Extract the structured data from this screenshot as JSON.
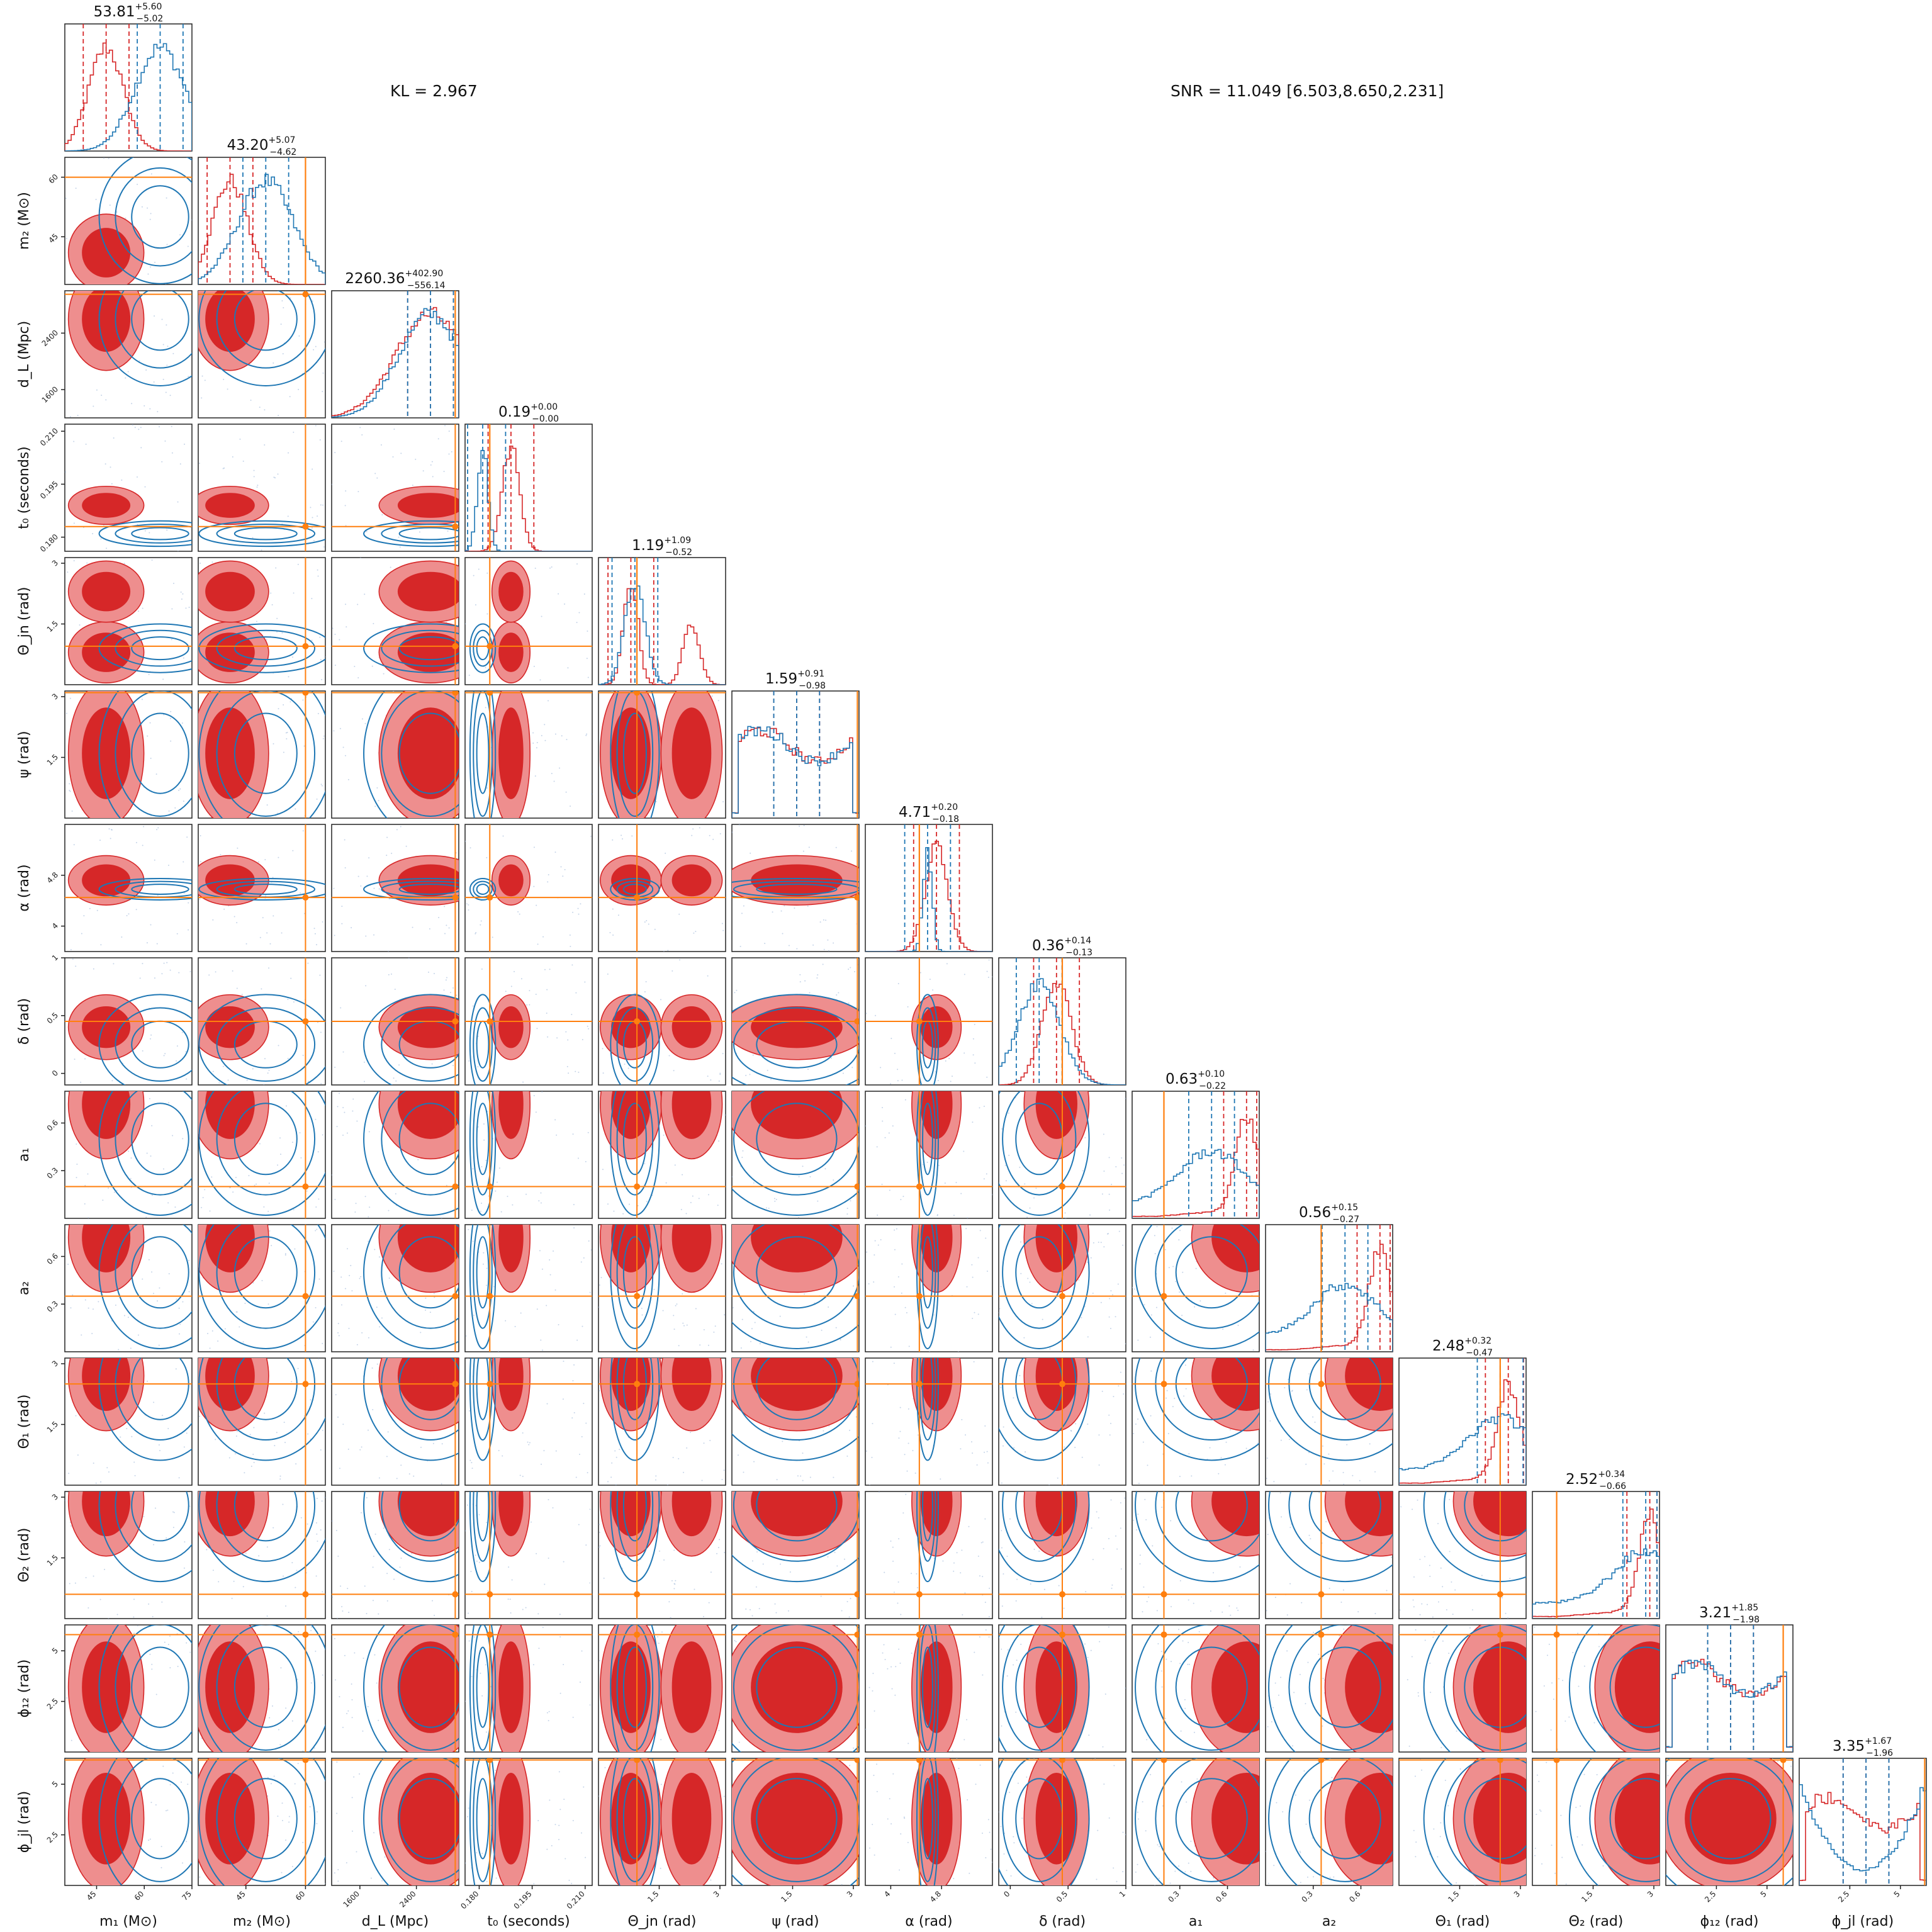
{
  "annotations": {
    "kl": "KL = 2.967",
    "snr": "SNR = 11.049 [6.503,8.650,2.231]"
  },
  "colors": {
    "red": "#d62728",
    "red_light": "#ee8e8e",
    "blue": "#1f77b4",
    "orange": "#ff7f0e"
  },
  "chart_data": {
    "type": "corner",
    "series": [
      {
        "name": "",
        "color": "#d62728",
        "style": "filled contours + step histograms"
      },
      {
        "name": "",
        "color": "#1f77b4",
        "style": "line contours + step histograms"
      }
    ],
    "parameters": [
      {
        "key": "m1",
        "xlabel": "m₁ (M⊙)",
        "ylabel": "",
        "range": [
          35,
          75
        ],
        "ticks": [
          45,
          60,
          75
        ],
        "title_median": "53.81",
        "title_plus": "+5.60",
        "title_minus": "−5.02",
        "red_mode": 48,
        "blue_mode": 65,
        "red_sigma": 5.5,
        "blue_sigma": 8,
        "truth": null
      },
      {
        "key": "m2",
        "xlabel": "m₂ (M⊙)",
        "ylabel": "m₂ (M⊙)",
        "range": [
          33,
          65
        ],
        "ticks": [
          45,
          60
        ],
        "title_median": "43.20",
        "title_plus": "+5.07",
        "title_minus": "−4.62",
        "red_mode": 41,
        "blue_mode": 50,
        "red_sigma": 4.5,
        "blue_sigma": 7,
        "truth": 60
      },
      {
        "key": "dL",
        "xlabel": "d_L (Mpc)",
        "ylabel": "d_L (Mpc)",
        "range": [
          1200,
          3000
        ],
        "ticks": [
          1600,
          2400
        ],
        "title_median": "2260.36",
        "title_plus": "+402.90",
        "title_minus": "−556.14",
        "red_mode": 2600,
        "blue_mode": 2600,
        "red_sigma": 500,
        "blue_sigma": 450,
        "truth": 2950
      },
      {
        "key": "t0",
        "xlabel": "t₀ (seconds)",
        "ylabel": "t₀ (seconds)",
        "range": [
          0.176,
          0.212
        ],
        "ticks": [
          0.18,
          0.195,
          0.21
        ],
        "tick_labels": [
          "0.180",
          "0.195",
          "0.210"
        ],
        "title_median": "0.19",
        "title_plus": "+0.00",
        "title_minus": "−0.00",
        "red_mode": 0.189,
        "blue_mode": 0.181,
        "red_sigma": 0.0025,
        "blue_sigma": 0.0015,
        "truth": 0.183
      },
      {
        "key": "theta_jn",
        "xlabel": "Θ_jn (rad)",
        "ylabel": "Θ_jn (rad)",
        "range": [
          0,
          3.14
        ],
        "ticks": [
          1.5,
          3.0
        ],
        "title_median": "1.19",
        "title_plus": "+1.09",
        "title_minus": "−0.52",
        "red_mode": 0.8,
        "blue_mode": 0.9,
        "red_sigma": 0.35,
        "blue_sigma": 0.25,
        "truth": 0.95,
        "bimodal_red": [
          0.8,
          2.3
        ]
      },
      {
        "key": "psi",
        "xlabel": "ψ (rad)",
        "ylabel": "ψ (rad)",
        "range": [
          0,
          3.14
        ],
        "ticks": [
          1.5,
          3.0
        ],
        "title_median": "1.59",
        "title_plus": "+0.91",
        "title_minus": "−0.98",
        "red_mode": 1.6,
        "blue_mode": 1.6,
        "uniform": true,
        "truth": 3.1
      },
      {
        "key": "alpha",
        "xlabel": "α (rad)",
        "ylabel": "α (rad)",
        "range": [
          3.6,
          5.6
        ],
        "ticks": [
          4.0,
          4.8
        ],
        "title_median": "4.71",
        "title_plus": "+0.20",
        "title_minus": "−0.18",
        "red_mode": 4.72,
        "blue_mode": 4.58,
        "red_sigma": 0.18,
        "blue_sigma": 0.07,
        "truth": 4.45
      },
      {
        "key": "delta",
        "xlabel": "δ (rad)",
        "ylabel": "δ (rad)",
        "range": [
          -0.1,
          1.0
        ],
        "ticks": [
          0.0,
          0.5,
          1.0
        ],
        "title_median": "0.36",
        "title_plus": "+0.14",
        "title_minus": "−0.13",
        "red_mode": 0.4,
        "blue_mode": 0.25,
        "red_sigma": 0.13,
        "blue_sigma": 0.18,
        "truth": 0.45
      },
      {
        "key": "a1",
        "xlabel": "a₁",
        "ylabel": "a₁",
        "range": [
          0,
          0.8
        ],
        "ticks": [
          0.3,
          0.6
        ],
        "title_median": "0.63",
        "title_plus": "+0.10",
        "title_minus": "−0.22",
        "red_mode": 0.72,
        "blue_mode": 0.5,
        "rising": true,
        "truth": 0.2
      },
      {
        "key": "a2",
        "xlabel": "a₂",
        "ylabel": "a₂",
        "range": [
          0,
          0.8
        ],
        "ticks": [
          0.3,
          0.6
        ],
        "title_median": "0.56",
        "title_plus": "+0.15",
        "title_minus": "−0.27",
        "red_mode": 0.72,
        "blue_mode": 0.5,
        "rising": true,
        "truth": 0.35
      },
      {
        "key": "theta1",
        "xlabel": "Θ₁ (rad)",
        "ylabel": "Θ₁ (rad)",
        "range": [
          0,
          3.14
        ],
        "ticks": [
          1.5,
          3.0
        ],
        "title_median": "2.48",
        "title_plus": "+0.32",
        "title_minus": "−0.47",
        "red_mode": 2.7,
        "blue_mode": 2.5,
        "rising": true,
        "truth": 2.5
      },
      {
        "key": "theta2",
        "xlabel": "Θ₂ (rad)",
        "ylabel": "Θ₂ (rad)",
        "range": [
          0,
          3.14
        ],
        "ticks": [
          1.5,
          3.0
        ],
        "title_median": "2.52",
        "title_plus": "+0.34",
        "title_minus": "−0.66",
        "red_mode": 2.9,
        "blue_mode": 2.8,
        "rising": true,
        "truth": 0.6
      },
      {
        "key": "phi12",
        "xlabel": "ϕ₁₂ (rad)",
        "ylabel": "ϕ₁₂ (rad)",
        "range": [
          0,
          6.28
        ],
        "ticks": [
          2.5,
          5.0
        ],
        "title_median": "3.21",
        "title_plus": "+1.85",
        "title_minus": "−1.98",
        "red_mode": 3.2,
        "blue_mode": 3.2,
        "uniform": true,
        "truth": 5.8
      },
      {
        "key": "phijl",
        "xlabel": "ϕ_jl (rad)",
        "ylabel": "ϕ_jl (rad)",
        "range": [
          0,
          6.28
        ],
        "ticks": [
          2.5,
          5.0
        ],
        "title_median": "3.35",
        "title_plus": "+1.67",
        "title_minus": "−1.96",
        "red_mode": 3.3,
        "blue_mode": 3.3,
        "uniform": true,
        "blue_bimodal_edges": true,
        "truth": 6.2
      }
    ]
  }
}
